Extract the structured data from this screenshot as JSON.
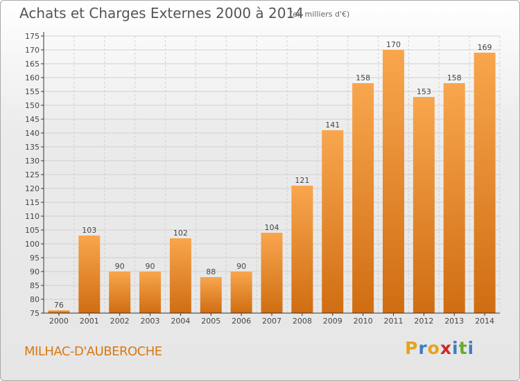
{
  "header": {
    "title": "Achats et Charges Externes 2000 à 2014",
    "subtitle": "(en milliers d'€)"
  },
  "footer": {
    "place": "MILHAC-D'AUBEROCHE",
    "logo_letters": [
      "P",
      "r",
      "o",
      "x",
      "i",
      "t",
      "i"
    ],
    "logo_colors": [
      "#e8a21a",
      "#3b7fc4",
      "#e8a21a",
      "#cc2a2a",
      "#3b7fc4",
      "#6aab2e",
      "#3b7fc4"
    ]
  },
  "colors": {
    "bar_light": "#f8a64e",
    "bar_dark": "#d06d12",
    "grid": "#d0d0d0",
    "axis": "#333333"
  },
  "chart_data": {
    "type": "bar",
    "title": "Achats et Charges Externes 2000 à 2014",
    "subtitle": "(en milliers d'€)",
    "categories": [
      "2000",
      "2001",
      "2002",
      "2003",
      "2004",
      "2005",
      "2006",
      "2007",
      "2008",
      "2009",
      "2010",
      "2011",
      "2012",
      "2013",
      "2014"
    ],
    "values": [
      76,
      103,
      90,
      90,
      102,
      88,
      90,
      104,
      121,
      141,
      158,
      170,
      153,
      158,
      169
    ],
    "ylim": [
      75,
      175
    ],
    "yticks": [
      75,
      80,
      85,
      90,
      95,
      100,
      105,
      110,
      115,
      120,
      125,
      130,
      135,
      140,
      145,
      150,
      155,
      160,
      165,
      170,
      175
    ],
    "grid": true,
    "legend": "none"
  }
}
